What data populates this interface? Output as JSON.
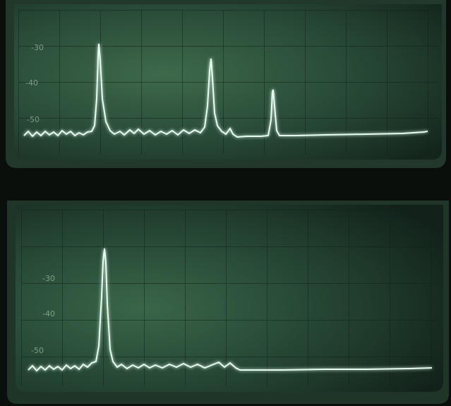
{
  "screens": [
    {
      "labels": [
        "-30",
        "-40",
        "-50"
      ]
    },
    {
      "labels": [
        "-30",
        "-40",
        "-50"
      ]
    }
  ]
}
